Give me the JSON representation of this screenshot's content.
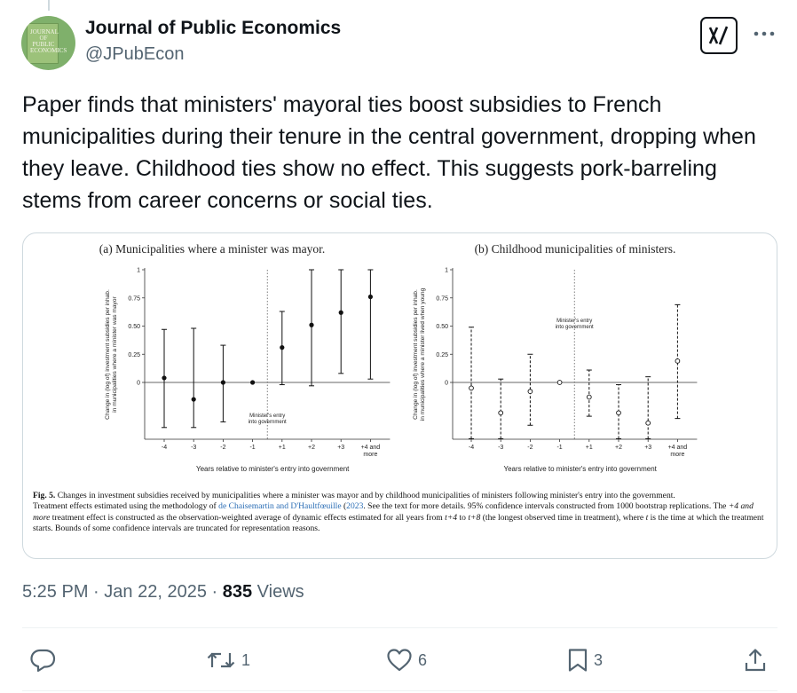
{
  "account": {
    "name": "Journal of Public Economics",
    "handle": "@JPubEcon",
    "avatar_cover_title": "JOURNAL OF PUBLIC ECONOMICS"
  },
  "header_actions": {
    "grok_icon": "grok-icon",
    "more_icon": "more-horizontal-icon"
  },
  "tweet": {
    "text": "Paper finds that ministers' mayoral ties boost subsidies to French municipalities during their tenure in the central government, dropping when they leave. Childhood ties show no effect. This suggests pork-barreling stems from career concerns or social ties."
  },
  "figure": {
    "caption": {
      "label": "Fig. 5.",
      "title": "Changes in investment subsidies received by municipalities where a minister was mayor and by childhood municipalities of ministers following minister's entry into the government.",
      "text_before_cite": "Treatment effects estimated using the methodology of",
      "cite": "de Chaisemartin and D'Haultfœuille",
      "cite_year": "2023",
      "text_after_cite_1": ". See the text for more details. 95% confidence intervals constructed from 1000 bootstrap replications. The",
      "italic_1": "+4 and more",
      "text_after_italic": "treatment effect is constructed as the observation-weighted average of dynamic effects estimated for all years from",
      "t4": "t+4",
      "to_word": "to",
      "t8": "t+8",
      "text_after_t8": "(the longest observed time in treatment), where",
      "t_var": "t",
      "text_end": "is the time at which the treatment starts. Bounds of some confidence intervals are truncated for representation reasons."
    }
  },
  "chart_data": [
    {
      "type": "scatter",
      "title": "(a) Municipalities where a minister was mayor.",
      "xlabel": "Years relative to minister's entry into government",
      "ylabel_line1": "Change in (log of) investment subsidies per inhab.",
      "ylabel_line2": "in municipalities where a minister was mayor",
      "categories": [
        "-4",
        "-3",
        "-2",
        "-1",
        "+1",
        "+2",
        "+3",
        "+4 and more"
      ],
      "x_tick_line1": [
        "-4",
        "-3",
        "-2",
        "-1",
        "+1",
        "+2",
        "+3",
        "+4 and"
      ],
      "x_tick_line2": [
        "",
        "",
        "",
        "",
        "",
        "",
        "",
        "more"
      ],
      "y_ticks": [
        "0",
        "0.25",
        "0.50",
        "0.75",
        "1"
      ],
      "y_tick_values": [
        0,
        0.25,
        0.5,
        0.75,
        1
      ],
      "ylim": [
        -0.5,
        1
      ],
      "estimates": [
        0.04,
        -0.15,
        0.0,
        0.0,
        0.31,
        0.51,
        0.62,
        0.76
      ],
      "ci_lower": [
        -0.4,
        -0.4,
        -0.35,
        0.0,
        -0.02,
        -0.03,
        0.08,
        0.03
      ],
      "ci_upper": [
        0.47,
        0.48,
        0.33,
        0.0,
        0.63,
        1.0,
        1.0,
        1.0
      ],
      "line_style": "solid",
      "marker": "filled",
      "annotation_line1": "Minister's entry",
      "annotation_line2": "into government",
      "annotation_placement": "below zero line, right of entry line"
    },
    {
      "type": "scatter",
      "title": "(b) Childhood municipalities of ministers.",
      "xlabel": "Years relative to minister's entry into government",
      "ylabel_line1": "Change in (log of) investment subsidies per inhab.",
      "ylabel_line2": "in municipalities where a minister lived when young",
      "categories": [
        "-4",
        "-3",
        "-2",
        "-1",
        "+1",
        "+2",
        "+3",
        "+4 and more"
      ],
      "x_tick_line1": [
        "-4",
        "-3",
        "-2",
        "-1",
        "+1",
        "+2",
        "+3",
        "+4 and"
      ],
      "x_tick_line2": [
        "",
        "",
        "",
        "",
        "",
        "",
        "",
        "more"
      ],
      "y_ticks": [
        "0",
        "0.25",
        "0.50",
        "0.75",
        "1"
      ],
      "y_tick_values": [
        0,
        0.25,
        0.5,
        0.75,
        1
      ],
      "ylim": [
        -0.5,
        1
      ],
      "estimates": [
        -0.05,
        -0.27,
        -0.08,
        0.0,
        -0.13,
        -0.27,
        -0.36,
        0.19
      ],
      "ci_lower": [
        -0.5,
        -0.5,
        -0.38,
        0.0,
        -0.3,
        -0.5,
        -0.5,
        -0.32
      ],
      "ci_upper": [
        0.49,
        0.03,
        0.25,
        0.0,
        0.11,
        -0.02,
        0.05,
        0.69
      ],
      "line_style": "dashed",
      "marker": "hollow",
      "annotation_line1": "Minister's entry",
      "annotation_line2": "into government",
      "annotation_placement": "above zero line, right of entry line"
    }
  ],
  "meta": {
    "time": "5:25 PM",
    "separator": "·",
    "date": "Jan 22, 2025",
    "views_count": "835",
    "views_label": "Views"
  },
  "actions": {
    "reply": {
      "icon": "reply-icon",
      "count": ""
    },
    "retweet": {
      "icon": "retweet-icon",
      "count": "1"
    },
    "like": {
      "icon": "heart-icon",
      "count": "6"
    },
    "bookmark": {
      "icon": "bookmark-icon",
      "count": "3"
    },
    "share": {
      "icon": "share-icon",
      "count": ""
    }
  },
  "colors": {
    "text_primary": "#0f1419",
    "text_secondary": "#536471",
    "border": "#cfd9de",
    "citation_link": "#2a6db5"
  }
}
